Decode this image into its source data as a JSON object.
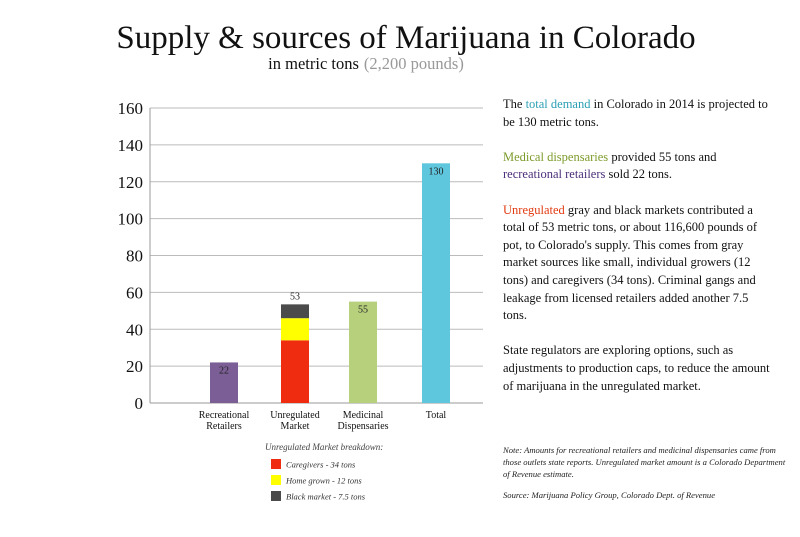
{
  "chart_data": {
    "type": "bar",
    "title": "Supply & sources of Marijuana in Colorado",
    "subtitle": "in metric tons",
    "subtitle_note": "(2,200 pounds)",
    "categories": [
      "Recreational Retailers",
      "Unregulated Market",
      "Medicinal Dispensaries",
      "Total"
    ],
    "values": [
      22,
      null,
      55,
      130
    ],
    "colors": [
      "#7b5e96",
      null,
      "#b6d07c",
      "#5ec6dd"
    ],
    "series": [
      {
        "name": "Caregivers - 34 tons",
        "color": "#ef2b10",
        "values": [
          null,
          34,
          null,
          null
        ]
      },
      {
        "name": "Home grown - 12 tons",
        "color": "#ffff00",
        "values": [
          null,
          12,
          null,
          null
        ]
      },
      {
        "name": "Black market - 7.5 tons",
        "color": "#4b4b4b",
        "values": [
          null,
          7.5,
          null,
          null
        ]
      }
    ],
    "totals": [
      null,
      53,
      null,
      null
    ],
    "legend_title": "Unregulated Market breakdown:",
    "ylim": [
      0,
      160
    ],
    "yticks": [
      0,
      20,
      40,
      60,
      80,
      100,
      120,
      140,
      160
    ],
    "grid": true
  },
  "text_panel": [
    [
      {
        "text": "The "
      },
      {
        "text": "total demand",
        "color": "#2a9fb4"
      },
      {
        "text": " in Colorado in 2014 is projected to be 130 metric tons."
      }
    ],
    [
      {
        "text": "Medical dispensaries",
        "color": "#7d9b2c"
      },
      {
        "text": " provided 55 tons and "
      },
      {
        "text": "recreational retailers",
        "color": "#4b2e7a"
      },
      {
        "text": " sold 22 tons."
      }
    ],
    [
      {
        "text": "Unregulated",
        "color": "#e23a10"
      },
      {
        "text": " gray and black markets contributed a total of 53 metric tons, or about 116,600 pounds of pot, to Colorado's supply. This comes from gray market sources like small, individual growers (12 tons) and caregivers (34 tons). Criminal gangs and leakage from licensed retailers added another 7.5 tons."
      }
    ],
    [
      {
        "text": "State regulators are exploring options, such as adjustments to production caps, to reduce the amount of marijuana in the unregulated market."
      }
    ]
  ],
  "note": "Note:  Amounts for recreational retailers and medicinal dispensaries came from those outlets state reports. Unregulated market amount is a Colorado Department of Revenue estimate.",
  "source": "Source: Marijuana Policy Group, Colorado Dept. of Revenue"
}
